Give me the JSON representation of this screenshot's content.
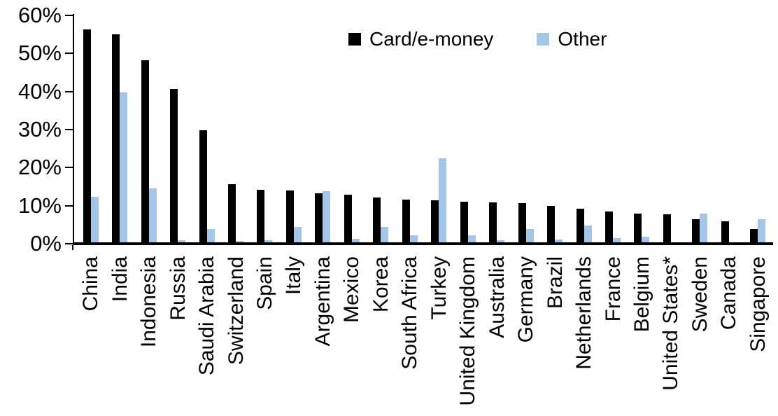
{
  "chart_data": {
    "type": "bar",
    "title": "",
    "xlabel": "",
    "ylabel": "",
    "ylim": [
      0,
      60
    ],
    "grid": false,
    "legend_position": "top-center",
    "x_label_rotation_deg": 90,
    "yticks": [
      {
        "value": 0,
        "label": "0%"
      },
      {
        "value": 10,
        "label": "10%"
      },
      {
        "value": 20,
        "label": "20%"
      },
      {
        "value": 30,
        "label": "30%"
      },
      {
        "value": 40,
        "label": "40%"
      },
      {
        "value": 50,
        "label": "50%"
      },
      {
        "value": 60,
        "label": "60%"
      }
    ],
    "categories": [
      "China",
      "India",
      "Indonesia",
      "Russia",
      "Saudi Arabia",
      "Switzerland",
      "Spain",
      "Italy",
      "Argentina",
      "Mexico",
      "Korea",
      "South Africa",
      "Turkey",
      "United Kingdom",
      "Australia",
      "Germany",
      "Brazil",
      "Netherlands",
      "France",
      "Belgium",
      "United States*",
      "Sweden",
      "Canada",
      "Singapore"
    ],
    "series": [
      {
        "name": "Card/e-money",
        "color": "#000000",
        "values": [
          56.3,
          55.0,
          48.3,
          40.6,
          29.9,
          15.6,
          14.1,
          13.9,
          13.3,
          12.8,
          12.2,
          11.6,
          11.5,
          11.0,
          10.8,
          10.6,
          9.9,
          9.2,
          8.5,
          8.0,
          7.7,
          6.4,
          5.9,
          3.8
        ]
      },
      {
        "name": "Other",
        "color": "#A3C6E8",
        "values": [
          12.3,
          39.7,
          14.5,
          1.0,
          3.9,
          0.8,
          0.9,
          4.5,
          13.8,
          1.3,
          4.5,
          2.3,
          22.4,
          2.3,
          0.9,
          3.9,
          1.1,
          4.7,
          1.5,
          1.9,
          0.3,
          8.0,
          0.0,
          6.5
        ]
      }
    ]
  }
}
